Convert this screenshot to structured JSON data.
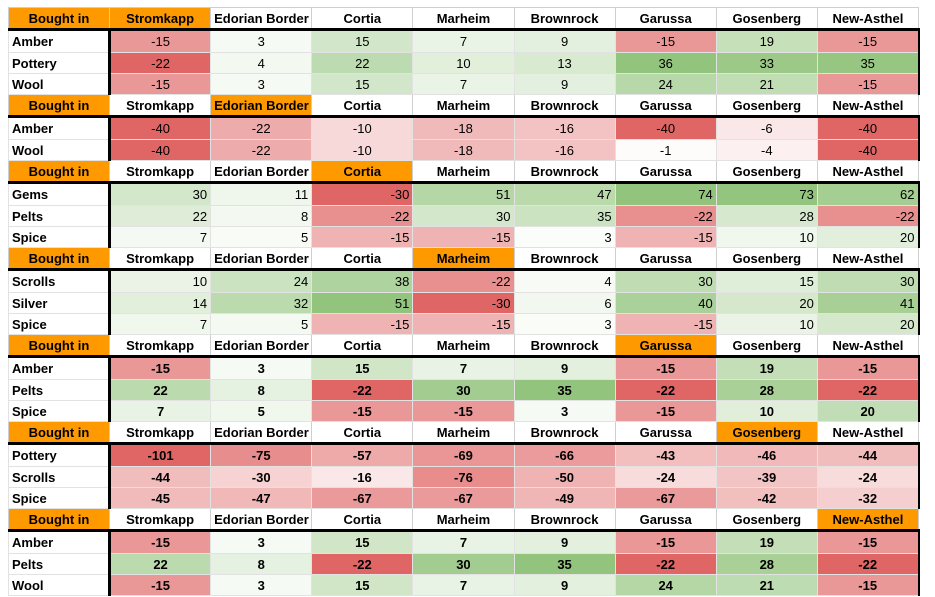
{
  "header_label": "Bought in",
  "colors": {
    "highlight": "#ff9900",
    "positive_strong": "#93c47d",
    "negative_strong": "#e06666"
  },
  "blocks": [
    {
      "highlight": "Stromkapp",
      "columns": [
        "Stromkapp",
        "Edorian Border",
        "Cortia",
        "Marheim",
        "Brownrock",
        "Garussa",
        "Gosenberg",
        "New-Asthel"
      ],
      "align": "center",
      "bold": false,
      "rows": [
        {
          "label": "Amber",
          "values": [
            -15,
            3,
            15,
            7,
            9,
            -15,
            19,
            -15
          ]
        },
        {
          "label": "Pottery",
          "values": [
            -22,
            4,
            22,
            10,
            13,
            36,
            33,
            35
          ]
        },
        {
          "label": "Wool",
          "values": [
            -15,
            3,
            15,
            7,
            9,
            24,
            21,
            -15
          ]
        }
      ]
    },
    {
      "highlight": "Edorian Border",
      "columns": [
        "Stromkapp",
        "Edorian Border",
        "Cortia",
        "Marheim",
        "Brownrock",
        "Garussa",
        "Gosenberg",
        "New-Asthel"
      ],
      "align": "center",
      "bold": false,
      "rows": [
        {
          "label": "Amber",
          "values": [
            -40,
            -22,
            -10,
            -18,
            -16,
            -40,
            -6,
            -40
          ]
        },
        {
          "label": "Wool",
          "values": [
            -40,
            -22,
            -10,
            -18,
            -16,
            -1,
            -4,
            -40
          ]
        }
      ]
    },
    {
      "highlight": "Cortia",
      "columns": [
        "Stromkapp",
        "Edorian Border",
        "Cortia",
        "Marheim",
        "Brownrock",
        "Garussa",
        "Gosenberg",
        "New-Asthel"
      ],
      "align": "right",
      "bold": false,
      "rows": [
        {
          "label": "Gems",
          "values": [
            30,
            11,
            -30,
            51,
            47,
            74,
            73,
            62
          ]
        },
        {
          "label": "Pelts",
          "values": [
            22,
            8,
            -22,
            30,
            35,
            -22,
            28,
            -22
          ]
        },
        {
          "label": "Spice",
          "values": [
            7,
            5,
            -15,
            -15,
            3,
            -15,
            10,
            20
          ]
        }
      ]
    },
    {
      "highlight": "Marheim",
      "columns": [
        "Stromkapp",
        "Edorian Border",
        "Cortia",
        "Marheim",
        "Brownrock",
        "Garussa",
        "Gosenberg",
        "New-Asthel"
      ],
      "align": "right",
      "bold": false,
      "rows": [
        {
          "label": "Scrolls",
          "values": [
            10,
            24,
            38,
            -22,
            4,
            30,
            15,
            30
          ]
        },
        {
          "label": "Silver",
          "values": [
            14,
            32,
            51,
            -30,
            6,
            40,
            20,
            41
          ]
        },
        {
          "label": "Spice",
          "values": [
            7,
            5,
            -15,
            -15,
            3,
            -15,
            10,
            20
          ]
        }
      ]
    },
    {
      "highlight": "Garussa",
      "columns": [
        "Stromkapp",
        "Edorian Border",
        "Cortia",
        "Marheim",
        "Brownrock",
        "Garussa",
        "Gosenberg",
        "New-Asthel"
      ],
      "align": "center",
      "bold": true,
      "rows": [
        {
          "label": "Amber",
          "values": [
            -15,
            3,
            15,
            7,
            9,
            -15,
            19,
            -15
          ]
        },
        {
          "label": "Pelts",
          "values": [
            22,
            8,
            -22,
            30,
            35,
            -22,
            28,
            -22
          ]
        },
        {
          "label": "Spice",
          "values": [
            7,
            5,
            -15,
            -15,
            3,
            -15,
            10,
            20
          ]
        }
      ]
    },
    {
      "highlight": "Gosenberg",
      "columns": [
        "Stromkapp",
        "Edorian Border",
        "Cortia",
        "Marheim",
        "Brownrock",
        "Garussa",
        "Gosenberg",
        "New-Asthel"
      ],
      "align": "center",
      "bold": true,
      "rows": [
        {
          "label": "Pottery",
          "values": [
            -101,
            -75,
            -57,
            -69,
            -66,
            -43,
            -46,
            -44
          ]
        },
        {
          "label": "Scrolls",
          "values": [
            -44,
            -30,
            -16,
            -76,
            -50,
            -24,
            -39,
            -24
          ]
        },
        {
          "label": "Spice",
          "values": [
            -45,
            -47,
            -67,
            -67,
            -49,
            -67,
            -42,
            -32
          ]
        }
      ]
    },
    {
      "highlight": "New-Asthel",
      "columns": [
        "Stromkapp",
        "Edorian Border",
        "Cortia",
        "Marheim",
        "Brownrock",
        "Garussa",
        "Gosenberg",
        "New-Asthel"
      ],
      "align": "center",
      "bold": true,
      "rows": [
        {
          "label": "Amber",
          "values": [
            -15,
            3,
            15,
            7,
            9,
            -15,
            19,
            -15
          ]
        },
        {
          "label": "Pelts",
          "values": [
            22,
            8,
            -22,
            30,
            35,
            -22,
            28,
            -22
          ]
        },
        {
          "label": "Wool",
          "values": [
            -15,
            3,
            15,
            7,
            9,
            24,
            21,
            -15
          ]
        }
      ]
    }
  ]
}
